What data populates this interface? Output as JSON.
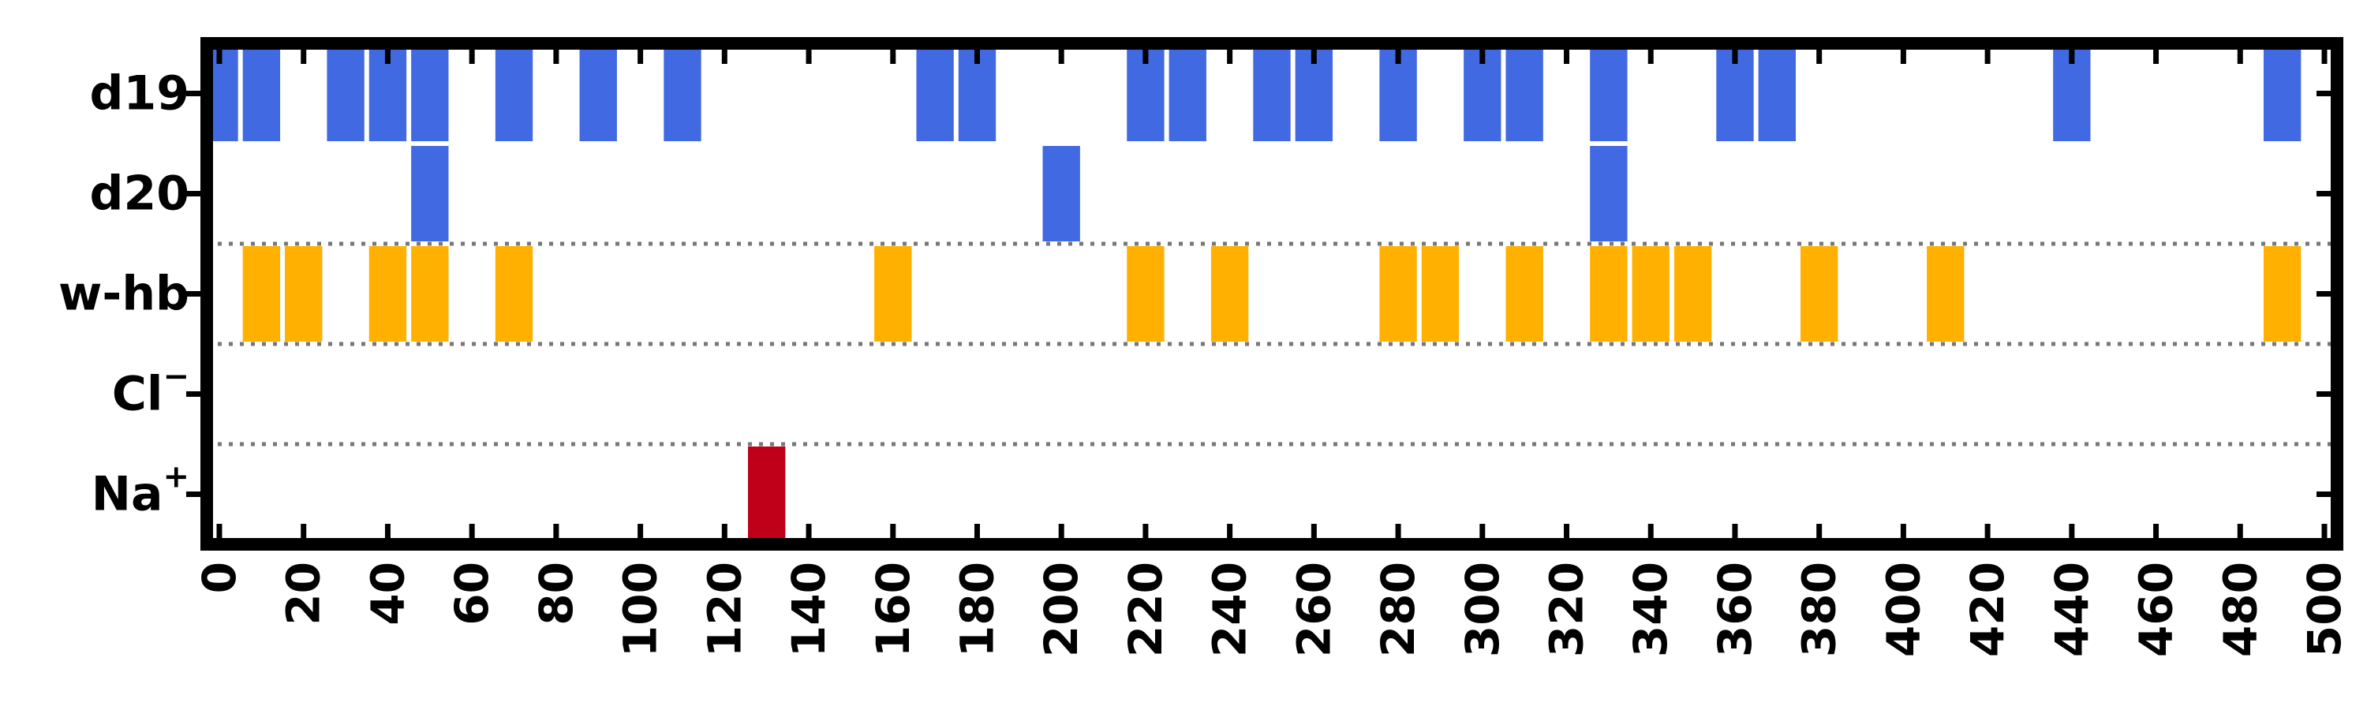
{
  "chart_data": {
    "type": "event-raster",
    "title": "",
    "xlabel": "",
    "ylabel": "",
    "xlim": [
      -3,
      503
    ],
    "x_ticks": [
      0,
      20,
      40,
      60,
      80,
      100,
      120,
      140,
      160,
      180,
      200,
      220,
      240,
      260,
      280,
      300,
      320,
      340,
      360,
      380,
      400,
      420,
      440,
      460,
      480,
      500
    ],
    "x_tick_labels": [
      "0",
      "20",
      "40",
      "60",
      "80",
      "100",
      "120",
      "140",
      "160",
      "180",
      "200",
      "220",
      "240",
      "260",
      "280",
      "300",
      "320",
      "340",
      "360",
      "380",
      "400",
      "420",
      "440",
      "460",
      "480",
      "500"
    ],
    "bin_width": 10,
    "rows": [
      {
        "label": "d19",
        "label_main": "d19",
        "label_sup": "",
        "color": "#4169E1",
        "x": [
          0,
          10,
          30,
          40,
          50,
          70,
          90,
          110,
          170,
          180,
          220,
          230,
          250,
          260,
          280,
          300,
          310,
          330,
          360,
          370,
          440,
          490
        ]
      },
      {
        "label": "d20",
        "label_main": "d20",
        "label_sup": "",
        "color": "#4169E1",
        "x": [
          50,
          200,
          330
        ]
      },
      {
        "label": "w-hb",
        "label_main": "w-hb",
        "label_sup": "",
        "color": "#FFB000",
        "x": [
          10,
          20,
          40,
          50,
          70,
          160,
          220,
          240,
          280,
          290,
          310,
          330,
          340,
          350,
          380,
          410,
          490
        ]
      },
      {
        "label": "Cl⁻",
        "label_main": "Cl",
        "label_sup": "−",
        "color": "#C00018",
        "x": []
      },
      {
        "label": "Na⁺",
        "label_main": "Na",
        "label_sup": "+",
        "color": "#C00018",
        "x": [
          130
        ]
      }
    ],
    "separators_after_rows": [
      1,
      2,
      3
    ],
    "grid": false,
    "legend": "none"
  }
}
